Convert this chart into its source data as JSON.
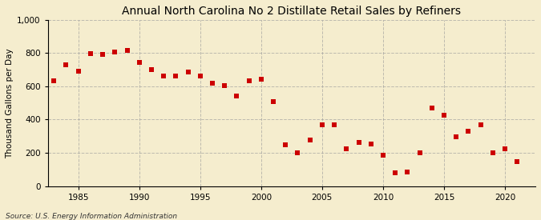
{
  "title": "Annual North Carolina No 2 Distillate Retail Sales by Refiners",
  "ylabel": "Thousand Gallons per Day",
  "source": "Source: U.S. Energy Information Administration",
  "background_color": "#f5edce",
  "years": [
    1983,
    1984,
    1985,
    1986,
    1987,
    1988,
    1989,
    1990,
    1991,
    1992,
    1993,
    1994,
    1995,
    1996,
    1997,
    1998,
    1999,
    2000,
    2001,
    2002,
    2003,
    2004,
    2005,
    2006,
    2007,
    2008,
    2009,
    2010,
    2011,
    2012,
    2013,
    2014,
    2015,
    2016,
    2017,
    2018,
    2019,
    2020,
    2021
  ],
  "values": [
    635,
    730,
    690,
    795,
    790,
    805,
    815,
    745,
    700,
    660,
    660,
    685,
    660,
    620,
    605,
    540,
    635,
    645,
    510,
    250,
    200,
    275,
    370,
    370,
    225,
    265,
    255,
    185,
    80,
    85,
    200,
    470,
    425,
    295,
    330,
    370,
    200,
    225,
    145
  ],
  "marker_color": "#cc0000",
  "marker_size": 18,
  "ylim": [
    0,
    1000
  ],
  "yticks": [
    0,
    200,
    400,
    600,
    800,
    1000
  ],
  "ytick_labels": [
    "0",
    "200",
    "400",
    "600",
    "800",
    "1,000"
  ],
  "xlim_left": 1982.5,
  "xlim_right": 2022.5,
  "xticks": [
    1985,
    1990,
    1995,
    2000,
    2005,
    2010,
    2015,
    2020
  ],
  "grid_color": "#999999",
  "grid_style": "--",
  "grid_alpha": 0.6,
  "grid_linewidth": 0.7
}
